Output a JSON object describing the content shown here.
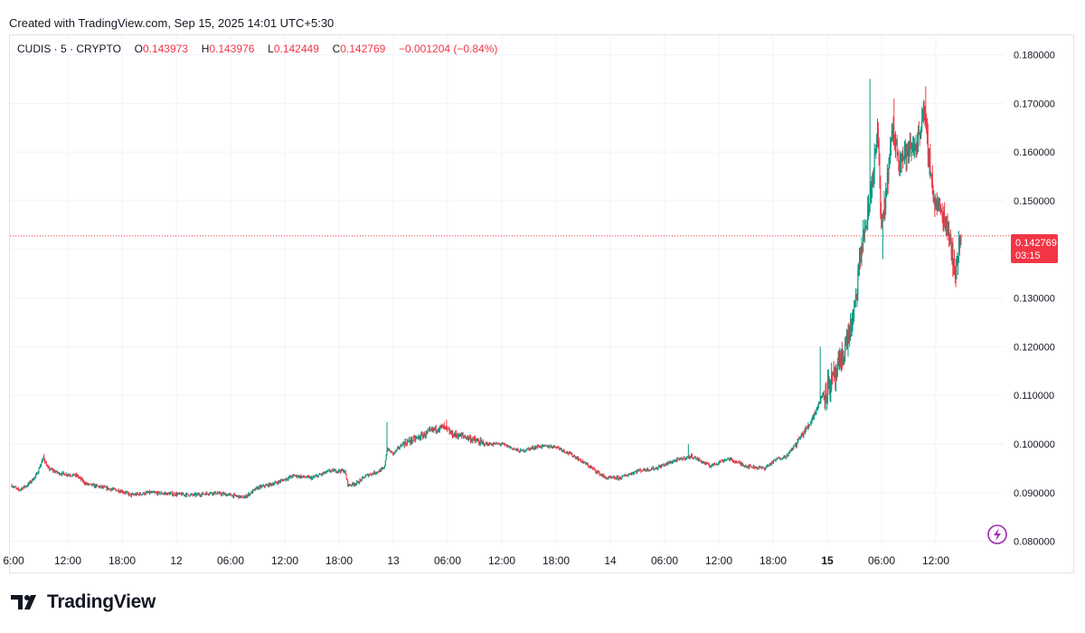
{
  "caption": "Created with TradingView.com, Sep 15, 2025 14:01 UTC+5:30",
  "legend": {
    "symbol": "CUDIS · 5 · CRYPTO",
    "o_label": "O",
    "o_value": "0.143973",
    "h_label": "H",
    "h_value": "0.143976",
    "l_label": "L",
    "l_value": "0.142449",
    "c_label": "C",
    "c_value": "0.142769",
    "change": "−0.001204 (−0.84%)"
  },
  "price_tag": {
    "price": "0.142769",
    "countdown": "03:15"
  },
  "brand": {
    "name": "TradingView"
  },
  "icons": [
    "tradingview-logo-icon",
    "lightning-icon"
  ],
  "colors": {
    "up": "#089981",
    "down": "#f23645",
    "grid": "#f0f3fa",
    "axis_text": "#131722",
    "tag": "#f23645"
  },
  "chart_data": {
    "type": "candlestick",
    "interval": "5",
    "y_axis_position": "right",
    "ylim": [
      0.079,
      0.184
    ],
    "grid": true,
    "y_ticks": [
      "0.180000",
      "0.170000",
      "0.160000",
      "0.150000",
      "0.140000",
      "0.130000",
      "0.120000",
      "0.110000",
      "0.100000",
      "0.090000",
      "0.080000"
    ],
    "x_ticks": [
      {
        "label": "6:00",
        "t": 0
      },
      {
        "label": "12:00",
        "t": 6
      },
      {
        "label": "18:00",
        "t": 12
      },
      {
        "label": "12",
        "t": 18,
        "bold": false
      },
      {
        "label": "06:00",
        "t": 24
      },
      {
        "label": "12:00",
        "t": 30
      },
      {
        "label": "18:00",
        "t": 36
      },
      {
        "label": "13",
        "t": 42
      },
      {
        "label": "06:00",
        "t": 48
      },
      {
        "label": "12:00",
        "t": 54
      },
      {
        "label": "18:00",
        "t": 60
      },
      {
        "label": "14",
        "t": 66
      },
      {
        "label": "06:00",
        "t": 72
      },
      {
        "label": "12:00",
        "t": 78
      },
      {
        "label": "18:00",
        "t": 84
      },
      {
        "label": "15",
        "t": 90,
        "bold": true
      },
      {
        "label": "06:00",
        "t": 96
      },
      {
        "label": "12:00",
        "t": 102
      }
    ],
    "last_price": 0.142769,
    "price_path": [
      [
        -0.2,
        0.0915
      ],
      [
        0.5,
        0.0905
      ],
      [
        1.5,
        0.0915
      ],
      [
        2.5,
        0.0935
      ],
      [
        3.3,
        0.0972
      ],
      [
        3.8,
        0.095
      ],
      [
        5,
        0.094
      ],
      [
        7,
        0.0935
      ],
      [
        8,
        0.0918
      ],
      [
        10,
        0.091
      ],
      [
        12,
        0.0903
      ],
      [
        13,
        0.0895
      ],
      [
        15,
        0.09
      ],
      [
        18,
        0.0897
      ],
      [
        20,
        0.0895
      ],
      [
        22,
        0.09
      ],
      [
        24,
        0.0895
      ],
      [
        25.5,
        0.089
      ],
      [
        27,
        0.091
      ],
      [
        29,
        0.092
      ],
      [
        31,
        0.0935
      ],
      [
        33,
        0.093
      ],
      [
        35,
        0.0945
      ],
      [
        36.6,
        0.0945
      ],
      [
        37,
        0.0915
      ],
      [
        38,
        0.092
      ],
      [
        39,
        0.0935
      ],
      [
        40.5,
        0.0945
      ],
      [
        41,
        0.095
      ],
      [
        41.3,
        0.099
      ],
      [
        42,
        0.098
      ],
      [
        43,
        0.1
      ],
      [
        45,
        0.1015
      ],
      [
        46.5,
        0.103
      ],
      [
        47.5,
        0.1035
      ],
      [
        48.5,
        0.102
      ],
      [
        50,
        0.1015
      ],
      [
        52,
        0.1
      ],
      [
        54,
        0.1
      ],
      [
        56,
        0.0985
      ],
      [
        58,
        0.0995
      ],
      [
        60,
        0.0995
      ],
      [
        62,
        0.0975
      ],
      [
        64,
        0.095
      ],
      [
        65.5,
        0.093
      ],
      [
        67,
        0.093
      ],
      [
        69,
        0.0945
      ],
      [
        71,
        0.095
      ],
      [
        73,
        0.0965
      ],
      [
        75,
        0.0975
      ],
      [
        77,
        0.0955
      ],
      [
        79,
        0.097
      ],
      [
        81,
        0.0955
      ],
      [
        83,
        0.095
      ],
      [
        84.5,
        0.097
      ],
      [
        85.5,
        0.0975
      ],
      [
        86.5,
        0.1
      ],
      [
        88,
        0.104
      ],
      [
        89,
        0.108
      ],
      [
        89.7,
        0.111
      ],
      [
        91,
        0.114
      ],
      [
        92,
        0.12
      ],
      [
        93,
        0.127
      ],
      [
        93.8,
        0.141
      ],
      [
        94.5,
        0.147
      ],
      [
        95.2,
        0.158
      ],
      [
        95.6,
        0.164
      ],
      [
        96,
        0.143
      ],
      [
        96.5,
        0.152
      ],
      [
        97.2,
        0.164
      ],
      [
        98,
        0.159
      ],
      [
        99,
        0.16
      ],
      [
        100,
        0.162
      ],
      [
        100.6,
        0.169
      ],
      [
        101.2,
        0.16
      ],
      [
        101.8,
        0.15
      ],
      [
        102.5,
        0.148
      ],
      [
        103.3,
        0.145
      ],
      [
        103.8,
        0.14
      ],
      [
        104.1,
        0.134
      ],
      [
        104.5,
        0.14
      ],
      [
        104.8,
        0.1428
      ]
    ],
    "spikes": [
      {
        "t": 3.4,
        "high": 0.098
      },
      {
        "t": 41.3,
        "high": 0.1045
      },
      {
        "t": 47.9,
        "high": 0.105
      },
      {
        "t": 74.6,
        "high": 0.1
      },
      {
        "t": 89.2,
        "high": 0.12
      },
      {
        "t": 94.7,
        "high": 0.175
      },
      {
        "t": 96.1,
        "low": 0.138
      },
      {
        "t": 97.4,
        "high": 0.171
      },
      {
        "t": 100.9,
        "high": 0.1735
      },
      {
        "t": 104.1,
        "low": 0.133
      }
    ]
  }
}
